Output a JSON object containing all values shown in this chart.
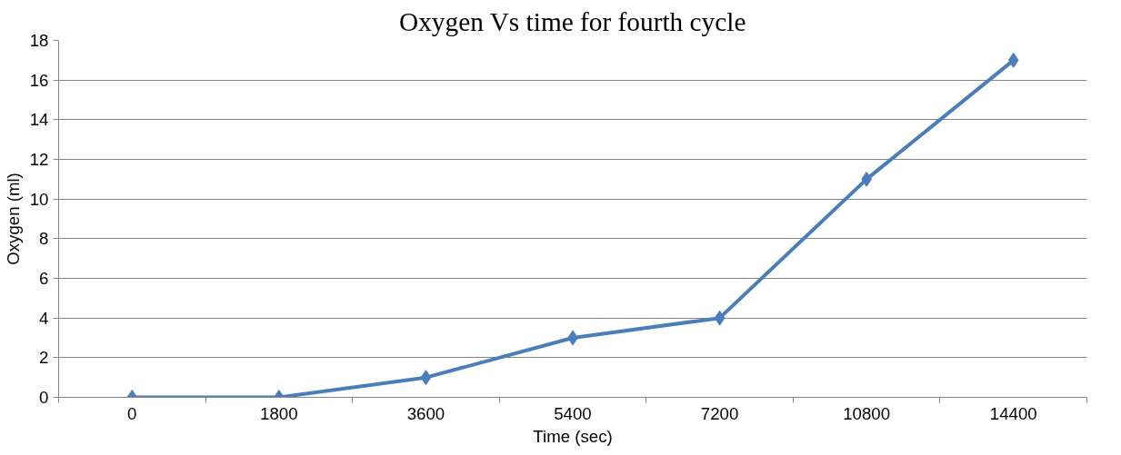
{
  "chart_data": {
    "type": "line",
    "title": "Oxygen Vs time for fourth cycle",
    "xlabel": "Time (sec)",
    "ylabel": "Oxygen (ml)",
    "categories": [
      "0",
      "1800",
      "3600",
      "5400",
      "7200",
      "10800",
      "14400"
    ],
    "series": [
      {
        "color": "#4a7ebb",
        "values": [
          0,
          0,
          1,
          3,
          4,
          11,
          17
        ]
      }
    ],
    "ylim": [
      0,
      18
    ],
    "yticks": [
      0,
      2,
      4,
      6,
      8,
      10,
      12,
      14,
      16,
      18
    ],
    "grid": "y",
    "marker": "diamond",
    "line_style": "solid"
  }
}
